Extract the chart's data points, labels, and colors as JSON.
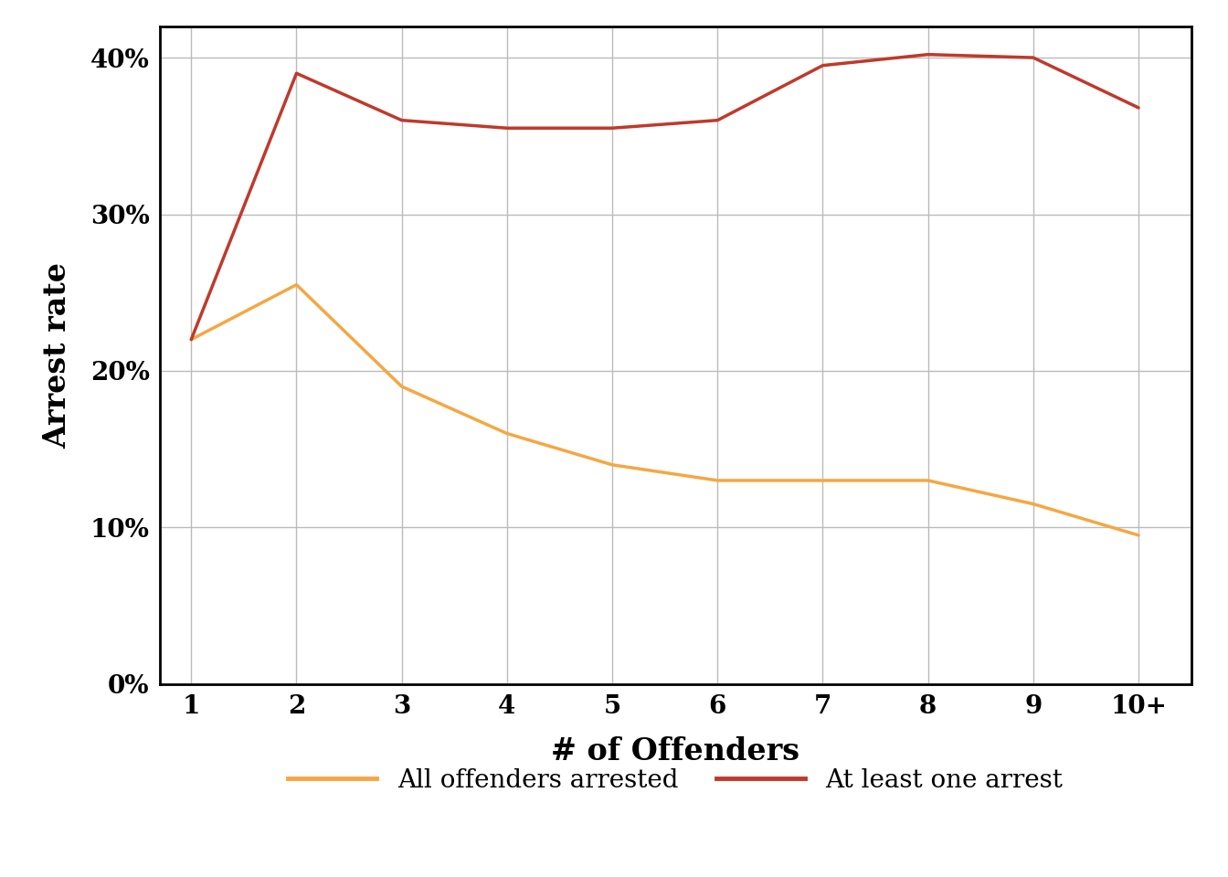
{
  "x_labels": [
    "1",
    "2",
    "3",
    "4",
    "5",
    "6",
    "7",
    "8",
    "9",
    "10+"
  ],
  "x_values": [
    1,
    2,
    3,
    4,
    5,
    6,
    7,
    8,
    9,
    10
  ],
  "all_arrested": [
    0.22,
    0.255,
    0.19,
    0.16,
    0.14,
    0.13,
    0.13,
    0.13,
    0.115,
    0.095
  ],
  "at_least_one": [
    0.22,
    0.39,
    0.36,
    0.355,
    0.355,
    0.36,
    0.395,
    0.402,
    0.4,
    0.368
  ],
  "all_arrested_color": "#F5A742",
  "at_least_one_color": "#C0392B",
  "background_color": "#FFFFFF",
  "grid_color": "#BBBBBB",
  "xlabel": "# of Offenders",
  "ylabel": "Arrest rate",
  "ylim": [
    0,
    0.42
  ],
  "yticks": [
    0.0,
    0.1,
    0.2,
    0.3,
    0.4
  ],
  "ytick_labels": [
    "0%",
    "10%",
    "20%",
    "30%",
    "40%"
  ],
  "legend_all": "All offenders arrested",
  "legend_one": "At least one arrest",
  "line_width": 2.5,
  "xlabel_fontsize": 24,
  "ylabel_fontsize": 24,
  "tick_fontsize": 20,
  "legend_fontsize": 20
}
